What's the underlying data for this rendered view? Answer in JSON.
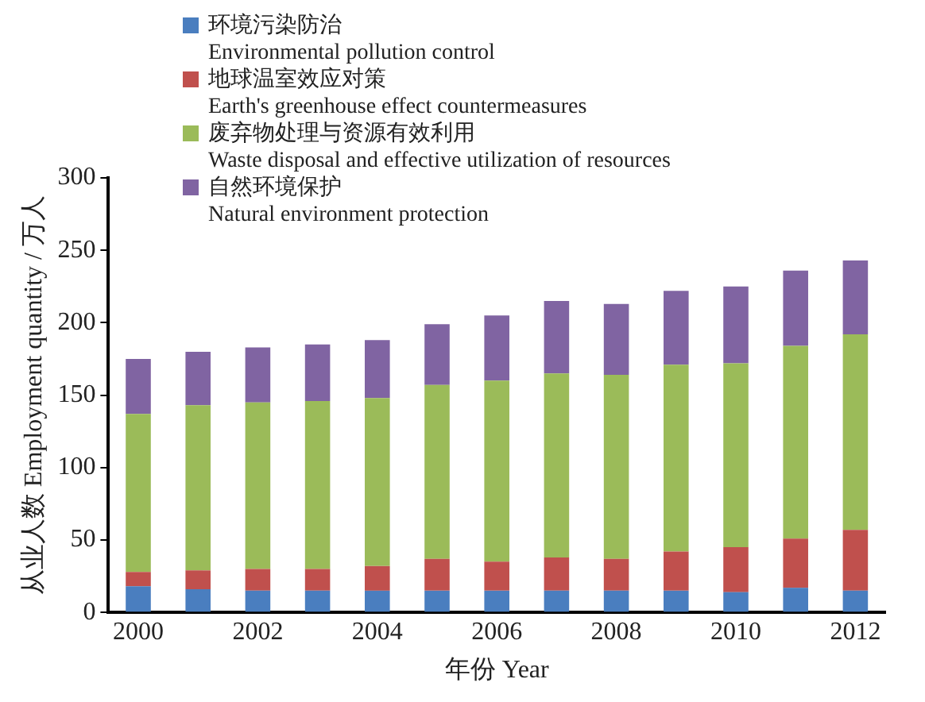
{
  "chart_data": {
    "type": "bar",
    "stacked": true,
    "xlabel": "年份 Year",
    "ylabel": "从业人数 Employment quantity / 万人",
    "categories": [
      "2000",
      null,
      "2002",
      null,
      "2004",
      null,
      "2006",
      null,
      "2008",
      null,
      "2010",
      null,
      "2012"
    ],
    "series": [
      {
        "name": "环境污染防治\nEnvironmental pollution control",
        "color": "#4a7ebf",
        "values": [
          18,
          16,
          15,
          15,
          15,
          15,
          15,
          15,
          15,
          15,
          14,
          17,
          15
        ]
      },
      {
        "name": "地球温室效应对策\nEarth's greenhouse effect countermeasures",
        "color": "#c0504d",
        "values": [
          10,
          13,
          15,
          15,
          17,
          22,
          20,
          23,
          22,
          27,
          31,
          34,
          42
        ]
      },
      {
        "name": "废弃物处理与资源有效利用\nWaste disposal and effective utilization of resources",
        "color": "#9bbb59",
        "values": [
          109,
          114,
          115,
          116,
          116,
          120,
          125,
          127,
          127,
          129,
          127,
          133,
          135
        ]
      },
      {
        "name": "自然环境保护\nNatural environment protection",
        "color": "#8064a2",
        "values": [
          38,
          37,
          38,
          39,
          40,
          42,
          45,
          50,
          49,
          51,
          53,
          52,
          51
        ]
      }
    ],
    "ylim": [
      0,
      300
    ],
    "yticks": [
      0,
      50,
      100,
      150,
      200,
      250,
      300
    ],
    "grid": false,
    "legend": "top left"
  }
}
